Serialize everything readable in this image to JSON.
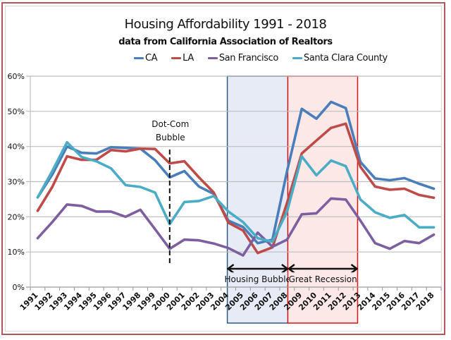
{
  "chart_data": {
    "type": "line",
    "title": "Housing Affordability 1991 - 2018",
    "subtitle": "data from California Association of Realtors",
    "xlabel": "",
    "ylabel": "",
    "ylim": [
      0,
      60
    ],
    "y_ticks": [
      "0%",
      "10%",
      "20%",
      "30%",
      "40%",
      "50%",
      "60%"
    ],
    "y_tick_values": [
      0,
      10,
      20,
      30,
      40,
      50,
      60
    ],
    "grid": true,
    "legend_position": "top",
    "x": [
      "1991",
      "1992",
      "1993",
      "1994",
      "1995",
      "1996",
      "1997",
      "1998",
      "1999",
      "2000",
      "2001",
      "2002",
      "2003",
      "2004",
      "2005",
      "2006",
      "2007",
      "2008",
      "2009",
      "2010",
      "2011",
      "2012",
      "2013",
      "2014",
      "2015",
      "2016",
      "2017",
      "2018"
    ],
    "series": [
      {
        "name": "CA",
        "color": "#4a7ebb",
        "values": [
          25.5,
          32,
          40,
          38.2,
          38,
          39.8,
          39.6,
          39.4,
          36.1,
          31.2,
          33,
          28.6,
          26.5,
          18.9,
          17.1,
          12.5,
          13.5,
          33,
          50.7,
          47.9,
          52.7,
          50.9,
          35.6,
          30.9,
          30.4,
          31,
          29.4,
          28
        ]
      },
      {
        "name": "LA",
        "color": "#be4b48",
        "values": [
          21.7,
          28.5,
          37.2,
          36.2,
          36.2,
          39,
          38.6,
          39.4,
          39.3,
          35.2,
          35.8,
          31.2,
          26.9,
          18.3,
          16.1,
          9.7,
          11.3,
          24,
          38,
          41.7,
          45.3,
          46.5,
          34.2,
          28.6,
          27.7,
          28,
          26.2,
          25.4
        ]
      },
      {
        "name": "San Francisco",
        "color": "#7d5fa0",
        "values": [
          13.9,
          18.5,
          23.5,
          23.1,
          21.5,
          21.5,
          20,
          22,
          16.5,
          10.9,
          13.5,
          13.3,
          12.4,
          11.1,
          9,
          15.5,
          11.5,
          13.5,
          20.7,
          21,
          25.2,
          24.9,
          18.9,
          12.5,
          10.9,
          13.1,
          12.5,
          14.9
        ]
      },
      {
        "name": "Santa Clara County",
        "color": "#4bacc6",
        "values": [
          25.5,
          33,
          41.2,
          37,
          35.8,
          33.8,
          29,
          28.5,
          26.9,
          17.9,
          24.2,
          24.5,
          25.9,
          21.5,
          18.5,
          13.9,
          12.9,
          21.5,
          37.2,
          31.8,
          36,
          34.4,
          24.9,
          21.3,
          19.7,
          20.5,
          17,
          17
        ]
      }
    ],
    "annotations": [
      {
        "label_line1": "Dot-Com",
        "label_line2": "Bubble",
        "at": "2000",
        "style": "dashed-vertical-line"
      },
      {
        "label": "Housing Bubble",
        "from": "2004",
        "to": "2008",
        "style": "shaded-region",
        "fill": "#e6ebf5",
        "border": "#2f5a86"
      },
      {
        "label": "Great Recession",
        "from": "2008",
        "to": "2013",
        "style": "shaded-region",
        "fill": "#fde8e8",
        "border": "#e01010"
      }
    ]
  }
}
